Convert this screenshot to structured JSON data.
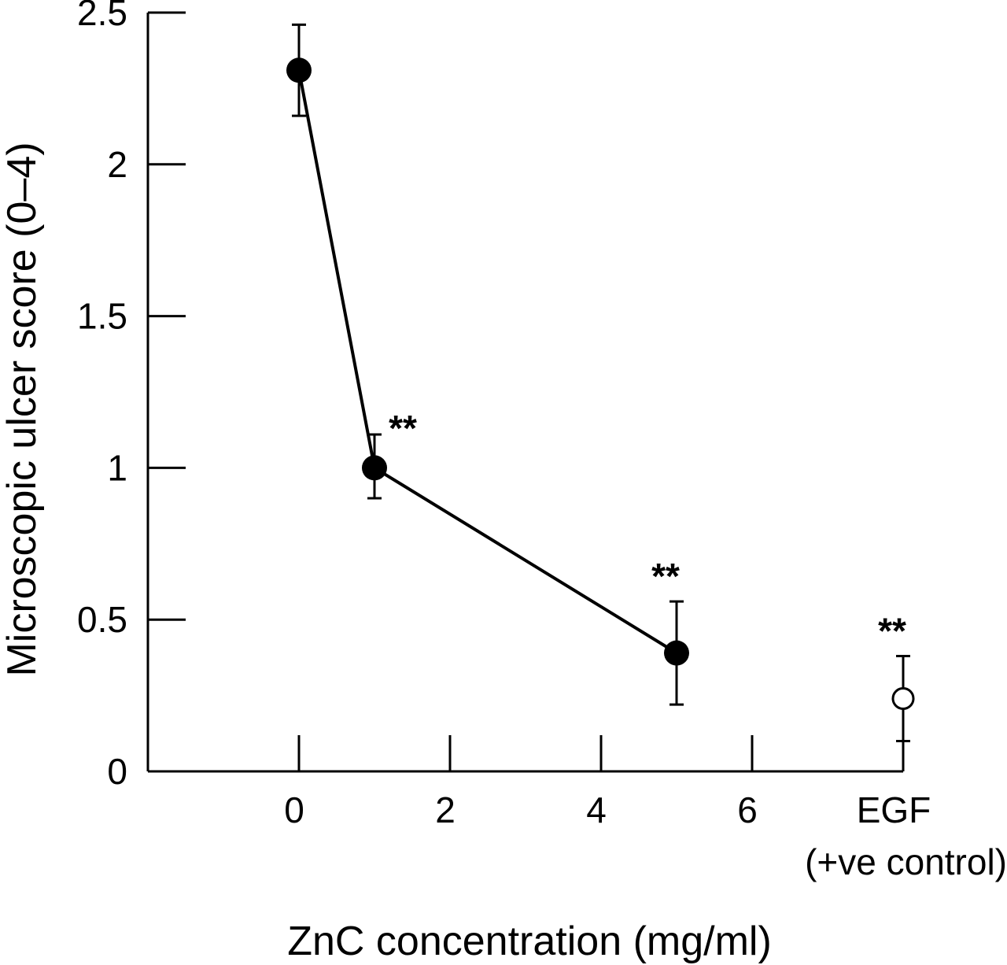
{
  "chart_data": {
    "type": "line",
    "title": "",
    "xlabel": "ZnC concentration (mg/ml)",
    "ylabel": "Microscopic ulcer score (0–4)",
    "ylim": [
      0,
      2.5
    ],
    "xlim": [
      -2,
      8
    ],
    "y_ticks": [
      "0",
      "0.5",
      "1",
      "1.5",
      "2",
      "2.5"
    ],
    "x_ticks": [
      "0",
      "2",
      "4",
      "6"
    ],
    "control_label": "EGF",
    "control_sublabel": "(+ve control)",
    "grid": false,
    "series": [
      {
        "marker": "filled-circle",
        "connected": true,
        "x": [
          0,
          1,
          5
        ],
        "y": [
          2.31,
          1.0,
          0.39
        ],
        "err_upper": [
          2.46,
          1.11,
          0.56
        ],
        "err_lower": [
          2.16,
          0.9,
          0.22
        ],
        "annotations": [
          "",
          "**",
          "**"
        ]
      },
      {
        "marker": "open-circle",
        "connected": false,
        "x": [
          8
        ],
        "y": [
          0.24
        ],
        "err_upper": [
          0.38
        ],
        "err_lower": [
          0.1
        ],
        "annotations": [
          "**"
        ]
      }
    ]
  }
}
